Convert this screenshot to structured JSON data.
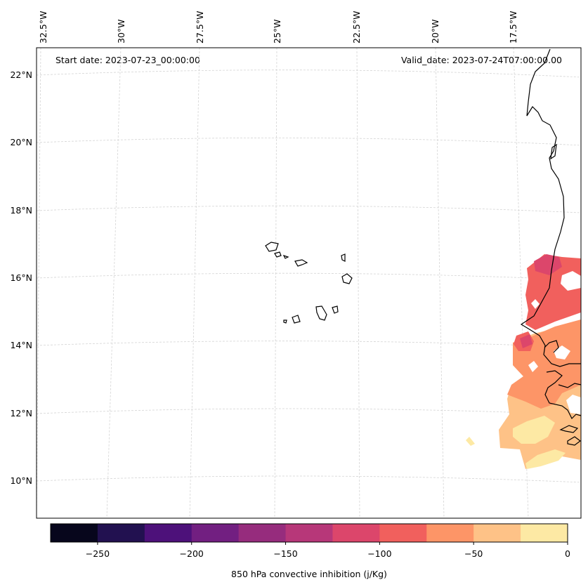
{
  "header": {
    "start_date": "Start date: 2023-07-23_00:00:00",
    "valid_date": "Valid_date: 2023-07-24T07:00:00.00"
  },
  "map": {
    "longitude_labels": [
      "32.5°W",
      "30°W",
      "27.5°W",
      "25°W",
      "22.5°W",
      "20°W",
      "17.5°W"
    ],
    "latitude_labels": [
      "22°N",
      "20°N",
      "18°N",
      "16°N",
      "14°N",
      "12°N",
      "10°N"
    ],
    "field": "850 hPa convective inhibition",
    "coastline_color": "#000000",
    "gridline_color": "#d0d0d0"
  },
  "colorbar": {
    "label": "850 hPa convective inhibition (j/Kg)",
    "tick_labels": [
      "−250",
      "−200",
      "−150",
      "−100",
      "−50",
      "0"
    ],
    "range": [
      -275,
      0
    ],
    "bins": [
      {
        "from": -275,
        "to": -250,
        "color": "#07061c"
      },
      {
        "from": -250,
        "to": -225,
        "color": "#221150"
      },
      {
        "from": -225,
        "to": -200,
        "color": "#4d117a"
      },
      {
        "from": -200,
        "to": -175,
        "color": "#721f81"
      },
      {
        "from": -175,
        "to": -150,
        "color": "#962c7d"
      },
      {
        "from": -150,
        "to": -125,
        "color": "#b73779"
      },
      {
        "from": -125,
        "to": -100,
        "color": "#dc466b"
      },
      {
        "from": -100,
        "to": -75,
        "color": "#f1605d"
      },
      {
        "from": -75,
        "to": -50,
        "color": "#fd9567"
      },
      {
        "from": -50,
        "to": -25,
        "color": "#fec287"
      },
      {
        "from": -25,
        "to": 0,
        "color": "#fde9a4"
      }
    ]
  }
}
